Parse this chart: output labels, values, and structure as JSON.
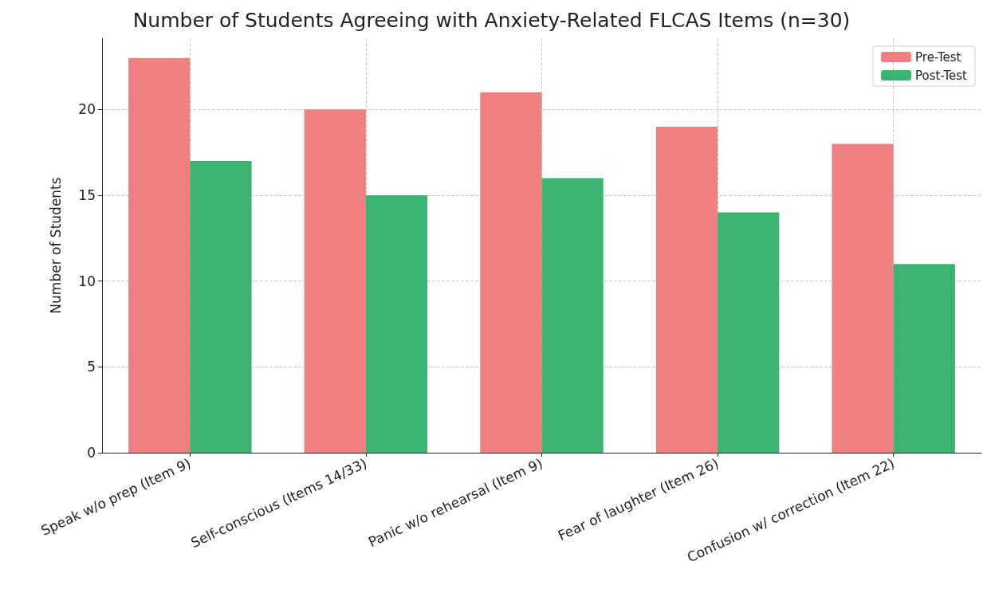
{
  "chart_data": {
    "type": "bar",
    "title": "Number of Students Agreeing with Anxiety-Related FLCAS Items (n=30)",
    "ylabel": "Number of Students",
    "categories": [
      "Speak w/o prep (Item 9)",
      "Self-conscious (Items 14/33)",
      "Panic w/o rehearsal (Item 9)",
      "Fear of laughter (Item 26)",
      "Confusion w/ correction (Item 22)"
    ],
    "series": [
      {
        "name": "Pre-Test",
        "color": "#f08080",
        "values": [
          23,
          20,
          21,
          19,
          18
        ]
      },
      {
        "name": "Post-Test",
        "color": "#3cb371",
        "values": [
          17,
          15,
          16,
          14,
          11
        ]
      }
    ],
    "ylim": [
      0,
      24.15
    ],
    "yticks": [
      0,
      5,
      10,
      15,
      20
    ],
    "grid": true,
    "legend": "top right"
  }
}
